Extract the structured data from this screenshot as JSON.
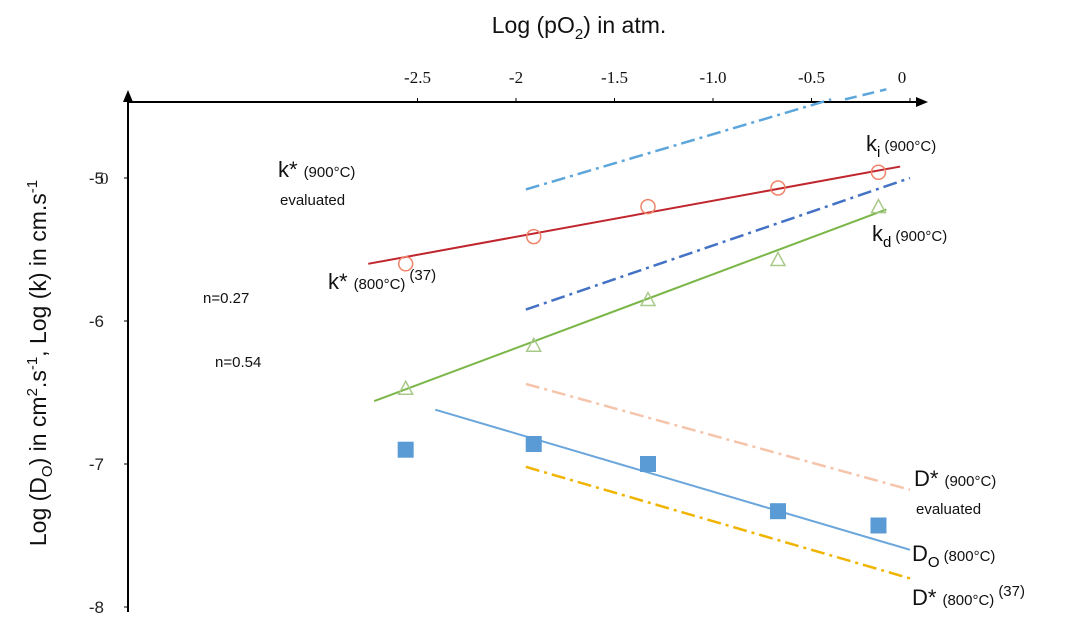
{
  "chart_data": {
    "type": "scatter",
    "title": "",
    "xlabel": "Log (pO2) in atm.",
    "xlabel_parts": {
      "main": "Log (pO",
      "sub": "2",
      "tail": ") in atm."
    },
    "ylabel": "Log (DO) in cm2.s-1, Log (k) in cm.s-1",
    "ylabel_parts": [
      "Log (D",
      "O",
      ") in cm",
      "2",
      ".s",
      "-1",
      ", Log (k) in cm.s",
      "-1"
    ],
    "xlim": [
      -2.9,
      0.05
    ],
    "ylim": [
      -8.0,
      -4.45
    ],
    "x_axis_position": "top",
    "grid": false,
    "legend": "none",
    "x_ticks": [
      {
        "value": -2.5,
        "label": "-2.5"
      },
      {
        "value": -2.0,
        "label": "-2"
      },
      {
        "value": -1.5,
        "label": "-1.5"
      },
      {
        "value": -1.0,
        "label": "-1.0"
      },
      {
        "value": -0.5,
        "label": "-0.5"
      },
      {
        "value": 0.0,
        "label": "0"
      }
    ],
    "y_ticks": [
      {
        "value": -5,
        "label": "-5"
      },
      {
        "value": -6,
        "label": "-6"
      },
      {
        "value": -7,
        "label": "-7"
      },
      {
        "value": -8,
        "label": "-8"
      }
    ],
    "y_tick_overlap_label": "0",
    "series": [
      {
        "id": "ki",
        "marker": "circle-open",
        "color": "#f0846a",
        "points": [
          [
            -2.56,
            -5.6
          ],
          [
            -1.91,
            -5.41
          ],
          [
            -1.33,
            -5.2
          ],
          [
            -0.67,
            -5.07
          ],
          [
            -0.16,
            -4.96
          ]
        ],
        "fit": [
          [
            -2.75,
            -5.6
          ],
          [
            -0.05,
            -4.92
          ]
        ],
        "fit_color": "#c0262e",
        "fit_style": "solid"
      },
      {
        "id": "kd",
        "marker": "triangle-open",
        "color": "#a9c98a",
        "points": [
          [
            -2.56,
            -6.47
          ],
          [
            -1.91,
            -6.17
          ],
          [
            -1.33,
            -5.85
          ],
          [
            -0.67,
            -5.57
          ],
          [
            -0.16,
            -5.2
          ]
        ],
        "fit": [
          [
            -2.72,
            -6.56
          ],
          [
            -0.12,
            -5.22
          ]
        ],
        "fit_color": "#7ab648",
        "fit_style": "solid"
      },
      {
        "id": "DO-800",
        "marker": "square-filled",
        "color": "#5b9bd5",
        "points": [
          [
            -2.56,
            -6.9
          ],
          [
            -1.91,
            -6.86
          ],
          [
            -1.33,
            -7.0
          ],
          [
            -0.67,
            -7.33
          ],
          [
            -0.16,
            -7.43
          ]
        ],
        "fit": [
          [
            -2.41,
            -6.62
          ],
          [
            0.0,
            -7.6
          ]
        ],
        "fit_color": "#6aa6db",
        "fit_style": "solid"
      },
      {
        "id": "kstar-900-eval",
        "marker": "none",
        "fit": [
          [
            -1.95,
            -5.08
          ],
          [
            -0.4,
            -4.45
          ]
        ],
        "fit_color": "#5da6dc",
        "fit_style": "dashdot"
      },
      {
        "id": "kstar-800",
        "marker": "none",
        "fit": [
          [
            -1.95,
            -5.92
          ],
          [
            0.0,
            -5.0
          ]
        ],
        "fit_color": "#4472c4",
        "fit_style": "dashdot"
      },
      {
        "id": "Dstar-900-eval",
        "marker": "none",
        "fit": [
          [
            -1.95,
            -6.44
          ],
          [
            0.0,
            -7.18
          ]
        ],
        "fit_color": "#f5c4aa",
        "fit_style": "dashdot"
      },
      {
        "id": "Dstar-800",
        "marker": "none",
        "fit": [
          [
            -1.95,
            -7.02
          ],
          [
            0.0,
            -7.8
          ]
        ],
        "fit_color": "#f0b400",
        "fit_style": "dashdot"
      }
    ],
    "extra_line": {
      "fit": [
        [
          -0.33,
          -4.45
        ],
        [
          -0.12,
          -4.38
        ]
      ],
      "fit_color": "#5da6dc",
      "fit_style": "dashed"
    },
    "annotations": {
      "ki": {
        "main": "k",
        "sub": "i",
        "cond": "(900°C)"
      },
      "kd": {
        "main": "k",
        "sub": "d",
        "cond": "(900°C)"
      },
      "kstar900": {
        "main": "k*",
        "cond": "(900°C)",
        "line2": "evaluated"
      },
      "kstar800": {
        "main": "k*",
        "cond": "(800°C)",
        "ref": "(37)"
      },
      "n027": "n=0.27",
      "n054": "n=0.54",
      "Dstar900": {
        "main": "D*",
        "cond": "(900°C)",
        "line2": "evaluated"
      },
      "DO800": {
        "main": "D",
        "sub": "O",
        "cond": "(800°C)"
      },
      "Dstar800": {
        "main": "D*",
        "cond": "(800°C)",
        "ref": "(37)"
      }
    }
  }
}
